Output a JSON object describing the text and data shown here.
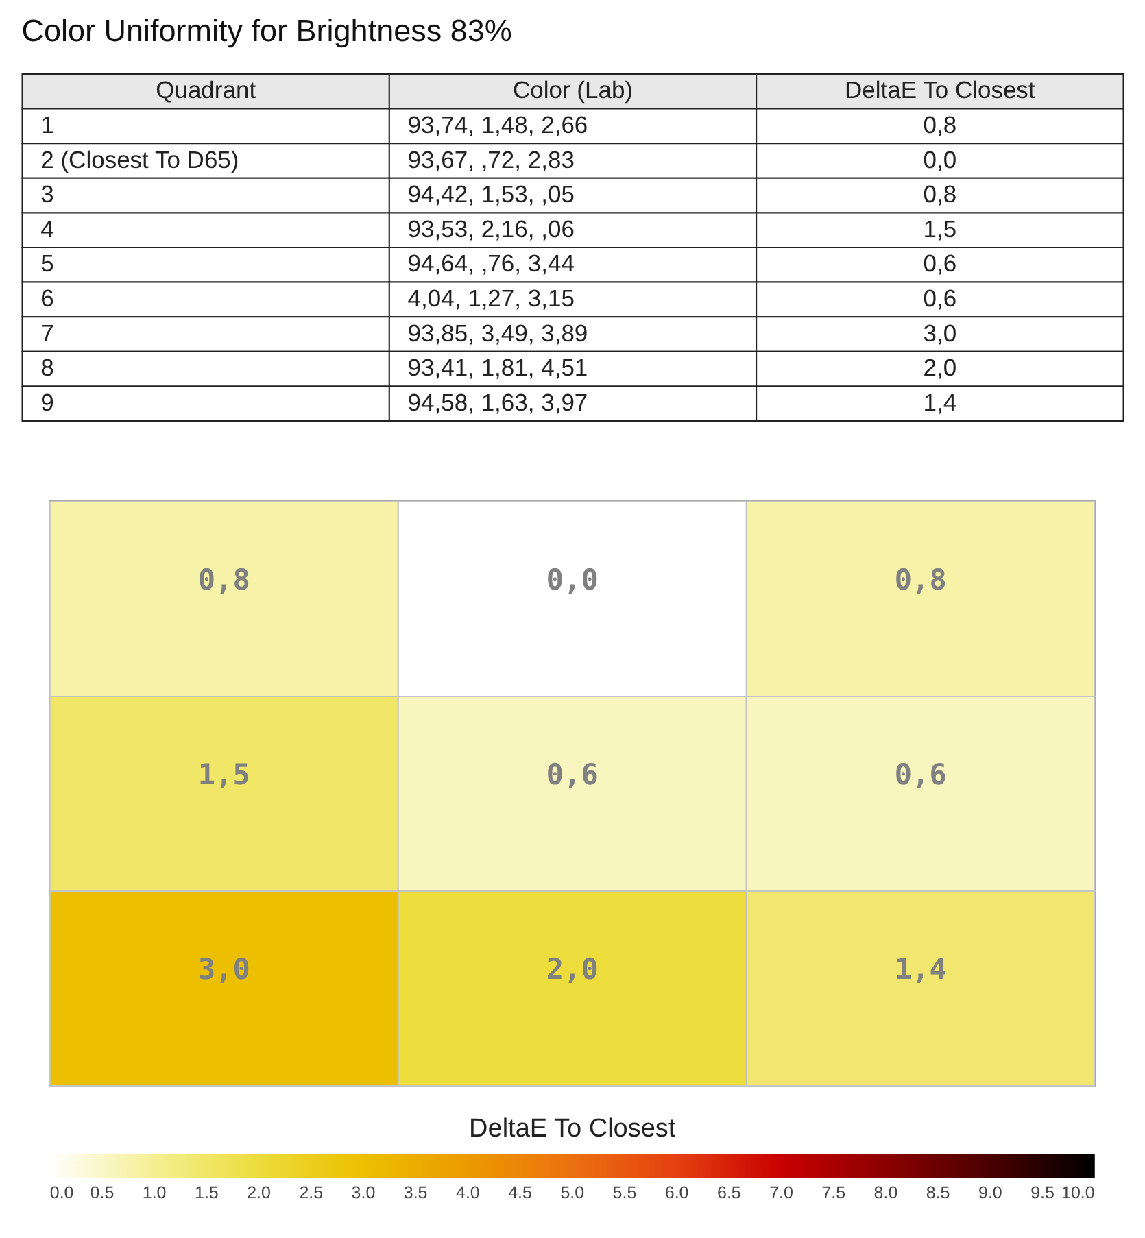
{
  "chart_data": [
    {
      "type": "other",
      "title": "Color Uniformity for Brightness 83%",
      "categories": [
        "Quadrant",
        "Color (Lab)",
        "DeltaE To Closest"
      ],
      "annotations": [
        "1",
        "93,74, 1,48, 2,66",
        "0,8",
        "2 (Closest To D65)",
        "93,67, ,72, 2,83",
        "0,0",
        "3",
        "94,42, 1,53, ,05",
        "0,8",
        "4",
        "93,53, 2,16, ,06",
        "1,5",
        "5",
        "94,64, ,76, 3,44",
        "0,6",
        "6",
        "4,04, 1,27, 3,15",
        "0,6",
        "7",
        "93,85, 3,49, 3,89",
        "3,0",
        "8",
        "93,41, 1,81, 4,51",
        "2,0",
        "9",
        "94,58, 1,63, 3,97",
        "1,4"
      ]
    },
    {
      "type": "heatmap",
      "categories": [
        null,
        null,
        null
      ],
      "y_categories": [
        null,
        null,
        null
      ],
      "cells": [
        [
          0.8,
          0.0,
          0.8
        ],
        [
          1.5,
          0.6,
          0.6
        ],
        [
          3.0,
          2.0,
          1.4
        ]
      ],
      "cell_labels": [
        [
          "0,8",
          "0,0",
          "0,8"
        ],
        [
          "1,5",
          "0,6",
          "0,6"
        ],
        [
          "3,0",
          "2,0",
          "1,4"
        ]
      ],
      "clabel": "DeltaE To Closest",
      "clim": [
        0,
        10
      ],
      "cticks": [
        {
          "value": 0,
          "label": "0.0"
        },
        0.5,
        {
          "value": 1,
          "label": "1.0"
        },
        1.5,
        {
          "value": 2,
          "label": "2.0"
        },
        2.5,
        {
          "value": 3,
          "label": "3.0"
        },
        3.5,
        {
          "value": 4,
          "label": "4.0"
        },
        4.5,
        {
          "value": 5,
          "label": "5.0"
        },
        5.5,
        {
          "value": 6,
          "label": "6.0"
        },
        6.5,
        {
          "value": 7,
          "label": "7.0"
        },
        7.5,
        {
          "value": 8,
          "label": "8.0"
        },
        8.5,
        {
          "value": 9,
          "label": "9.0"
        },
        9.5,
        {
          "value": 10,
          "label": "10.0"
        }
      ]
    }
  ]
}
